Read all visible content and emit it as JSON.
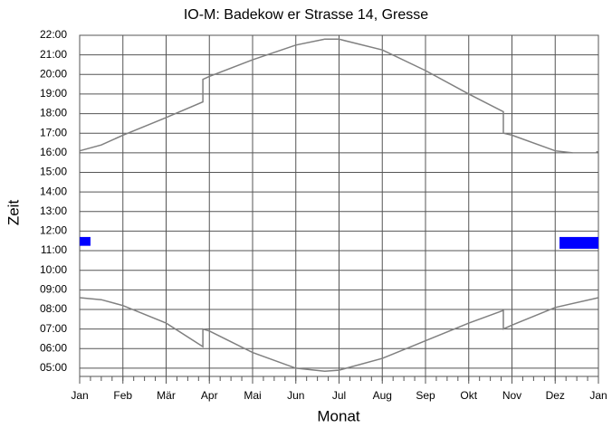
{
  "chart_data": {
    "type": "line",
    "title": "IO-M: Badekow er Strasse 14, Gresse",
    "x_label": "Monat",
    "y_label": "Zeit",
    "xlim": [
      0,
      12
    ],
    "xticks": [
      {
        "value": 0,
        "label": "Jan"
      },
      {
        "value": 1,
        "label": "Feb"
      },
      {
        "value": 2,
        "label": "Mär"
      },
      {
        "value": 3,
        "label": "Apr"
      },
      {
        "value": 4,
        "label": "Mai"
      },
      {
        "value": 5,
        "label": "Jun"
      },
      {
        "value": 6,
        "label": "Jul"
      },
      {
        "value": 7,
        "label": "Aug"
      },
      {
        "value": 8,
        "label": "Sep"
      },
      {
        "value": 9,
        "label": "Okt"
      },
      {
        "value": 10,
        "label": "Nov"
      },
      {
        "value": 11,
        "label": "Dez"
      },
      {
        "value": 12,
        "label": "Jan"
      }
    ],
    "ylim": [
      4.58,
      22
    ],
    "yticks": [
      {
        "value": 5,
        "label": "05:00"
      },
      {
        "value": 6,
        "label": "06:00"
      },
      {
        "value": 7,
        "label": "07:00"
      },
      {
        "value": 8,
        "label": "08:00"
      },
      {
        "value": 9,
        "label": "09:00"
      },
      {
        "value": 10,
        "label": "10:00"
      },
      {
        "value": 11,
        "label": "11:00"
      },
      {
        "value": 12,
        "label": "12:00"
      },
      {
        "value": 13,
        "label": "13:00"
      },
      {
        "value": 14,
        "label": "14:00"
      },
      {
        "value": 15,
        "label": "15:00"
      },
      {
        "value": 16,
        "label": "16:00"
      },
      {
        "value": 17,
        "label": "17:00"
      },
      {
        "value": 18,
        "label": "18:00"
      },
      {
        "value": 19,
        "label": "19:00"
      },
      {
        "value": 20,
        "label": "20:00"
      },
      {
        "value": 21,
        "label": "21:00"
      },
      {
        "value": 22,
        "label": "22:00"
      }
    ],
    "grid": true,
    "series": [
      {
        "color": "#808080",
        "x": [
          0,
          0.5,
          1,
          2,
          2.85,
          2.85,
          3,
          4,
          5,
          5.67,
          6,
          7,
          8,
          9,
          9.8,
          9.8,
          10,
          11,
          11.4,
          null,
          11.95,
          12
        ],
        "values": [
          16.1,
          16.4,
          16.9,
          17.8,
          18.6,
          19.75,
          19.9,
          20.75,
          21.5,
          21.8,
          21.8,
          21.25,
          20.2,
          19.0,
          18.1,
          17.0,
          16.9,
          16.1,
          16.0,
          null,
          16.05,
          16.05
        ]
      },
      {
        "color": "#808080",
        "x": [
          0,
          0.5,
          1,
          2,
          2.85,
          2.85,
          3,
          4,
          5,
          5.67,
          6,
          7,
          8,
          9,
          9.8,
          9.8,
          10,
          11,
          12
        ],
        "values": [
          8.6,
          8.5,
          8.2,
          7.3,
          6.1,
          7.0,
          6.9,
          5.8,
          5.0,
          4.85,
          4.9,
          5.5,
          6.4,
          7.3,
          7.95,
          7.0,
          7.2,
          8.1,
          8.6
        ]
      }
    ],
    "shadow_color": "#0000ff",
    "shadows": [
      {
        "x": [
          0,
          0.25
        ],
        "y": [
          11.25,
          11.7
        ]
      },
      {
        "x": [
          11.1,
          12
        ],
        "y": [
          11.1,
          11.7
        ]
      }
    ]
  }
}
